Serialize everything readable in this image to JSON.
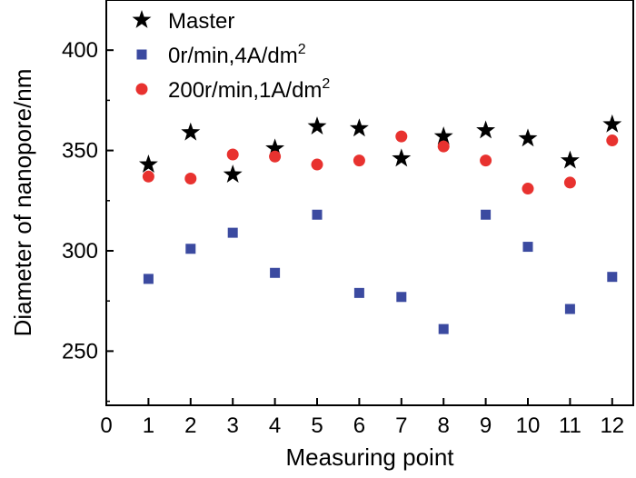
{
  "chart_data": {
    "type": "scatter",
    "title": "",
    "xlabel": "Measuring point",
    "ylabel": "Diameter of nanopore/nm",
    "xlim": [
      0,
      12.5
    ],
    "ylim": [
      223,
      425
    ],
    "xticks": [
      0,
      1,
      2,
      3,
      4,
      5,
      6,
      7,
      8,
      9,
      10,
      11,
      12
    ],
    "yticks": [
      250,
      300,
      350,
      400
    ],
    "legend_position": "top-left",
    "series": [
      {
        "name": "Master",
        "legend_main": "Master",
        "legend_sup": "",
        "marker": "star",
        "color": "#000000",
        "x": [
          1,
          2,
          3,
          4,
          5,
          6,
          7,
          8,
          9,
          10,
          11,
          12
        ],
        "y": [
          343,
          359,
          338,
          351,
          362,
          361,
          346,
          357,
          360,
          356,
          345,
          363
        ]
      },
      {
        "name": "0r/min,4A/dm2",
        "legend_main": "0r/min,4A/dm",
        "legend_sup": "2",
        "marker": "square",
        "color": "#3b4aa0",
        "x": [
          1,
          2,
          3,
          4,
          5,
          6,
          7,
          8,
          9,
          10,
          11,
          12
        ],
        "y": [
          286,
          301,
          309,
          289,
          318,
          279,
          277,
          261,
          318,
          302,
          271,
          287
        ]
      },
      {
        "name": "200r/min,1A/dm2",
        "legend_main": "200r/min,1A/dm",
        "legend_sup": "2",
        "marker": "circle",
        "color": "#e8322f",
        "x": [
          1,
          2,
          3,
          4,
          5,
          6,
          7,
          8,
          9,
          10,
          11,
          12
        ],
        "y": [
          337,
          336,
          348,
          347,
          343,
          345,
          357,
          352,
          345,
          331,
          334,
          355
        ]
      }
    ]
  }
}
